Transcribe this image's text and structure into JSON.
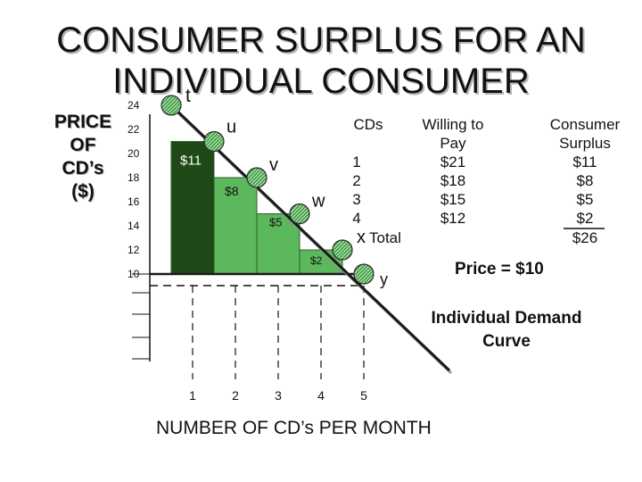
{
  "title_lines": [
    "CONSUMER SURPLUS FOR AN",
    "INDIVIDUAL CONSUMER"
  ],
  "price_axis_label": [
    "PRICE",
    "OF",
    "CD’s",
    "($)"
  ],
  "x_axis_label": "NUMBER OF CD’s PER MONTH",
  "price_label": "Price = $10",
  "demand_label": [
    "Individual Demand",
    "Curve"
  ],
  "table": {
    "headers": [
      [
        "CDs"
      ],
      [
        "Willing to",
        "Pay"
      ],
      [
        "Consumer",
        "Surplus"
      ]
    ],
    "rows": [
      [
        "1",
        "$21",
        "$11"
      ],
      [
        "2",
        "$18",
        "$8"
      ],
      [
        "3",
        "$15",
        "$5"
      ],
      [
        "4",
        "$12",
        "$2"
      ]
    ],
    "total_label": "Total",
    "total_value": "$26"
  },
  "colors": {
    "demand_line": "#1a1a1a",
    "price_line": "#1a1a1a",
    "surplus_fill": "#5cb85c",
    "surplus_dark": "#1f4a17",
    "point_fill": "#3da040"
  },
  "chart_data": {
    "type": "line",
    "x_ticks": [
      "1",
      "2",
      "3",
      "4",
      "5"
    ],
    "y_ticks": [
      "24",
      "22",
      "20",
      "18",
      "16",
      "14",
      "12",
      "10"
    ],
    "demand_points": [
      {
        "label": "t",
        "x": 0.5,
        "y": 24
      },
      {
        "label": "u",
        "x": 1.5,
        "y": 21
      },
      {
        "label": "v",
        "x": 2.5,
        "y": 18
      },
      {
        "label": "w",
        "x": 3.5,
        "y": 15
      },
      {
        "label": "x",
        "x": 4.5,
        "y": 12
      },
      {
        "label": "y",
        "x": 5,
        "y": 10
      }
    ],
    "demand_line": {
      "x": [
        0.5,
        7
      ],
      "y": [
        24,
        2
      ]
    },
    "price": 10,
    "surplus_bars": [
      {
        "label": "$11",
        "x0": 0.5,
        "x1": 1.5,
        "top": 21,
        "value": 11
      },
      {
        "label": "$8",
        "x0": 1.5,
        "x1": 2.5,
        "top": 18,
        "value": 8
      },
      {
        "label": "$5",
        "x0": 2.5,
        "x1": 3.5,
        "top": 15,
        "value": 5
      },
      {
        "label": "$2",
        "x0": 3.5,
        "x1": 4.5,
        "top": 12,
        "value": 2
      }
    ],
    "dashed_guides_x": [
      1,
      2,
      3,
      4,
      5
    ]
  }
}
